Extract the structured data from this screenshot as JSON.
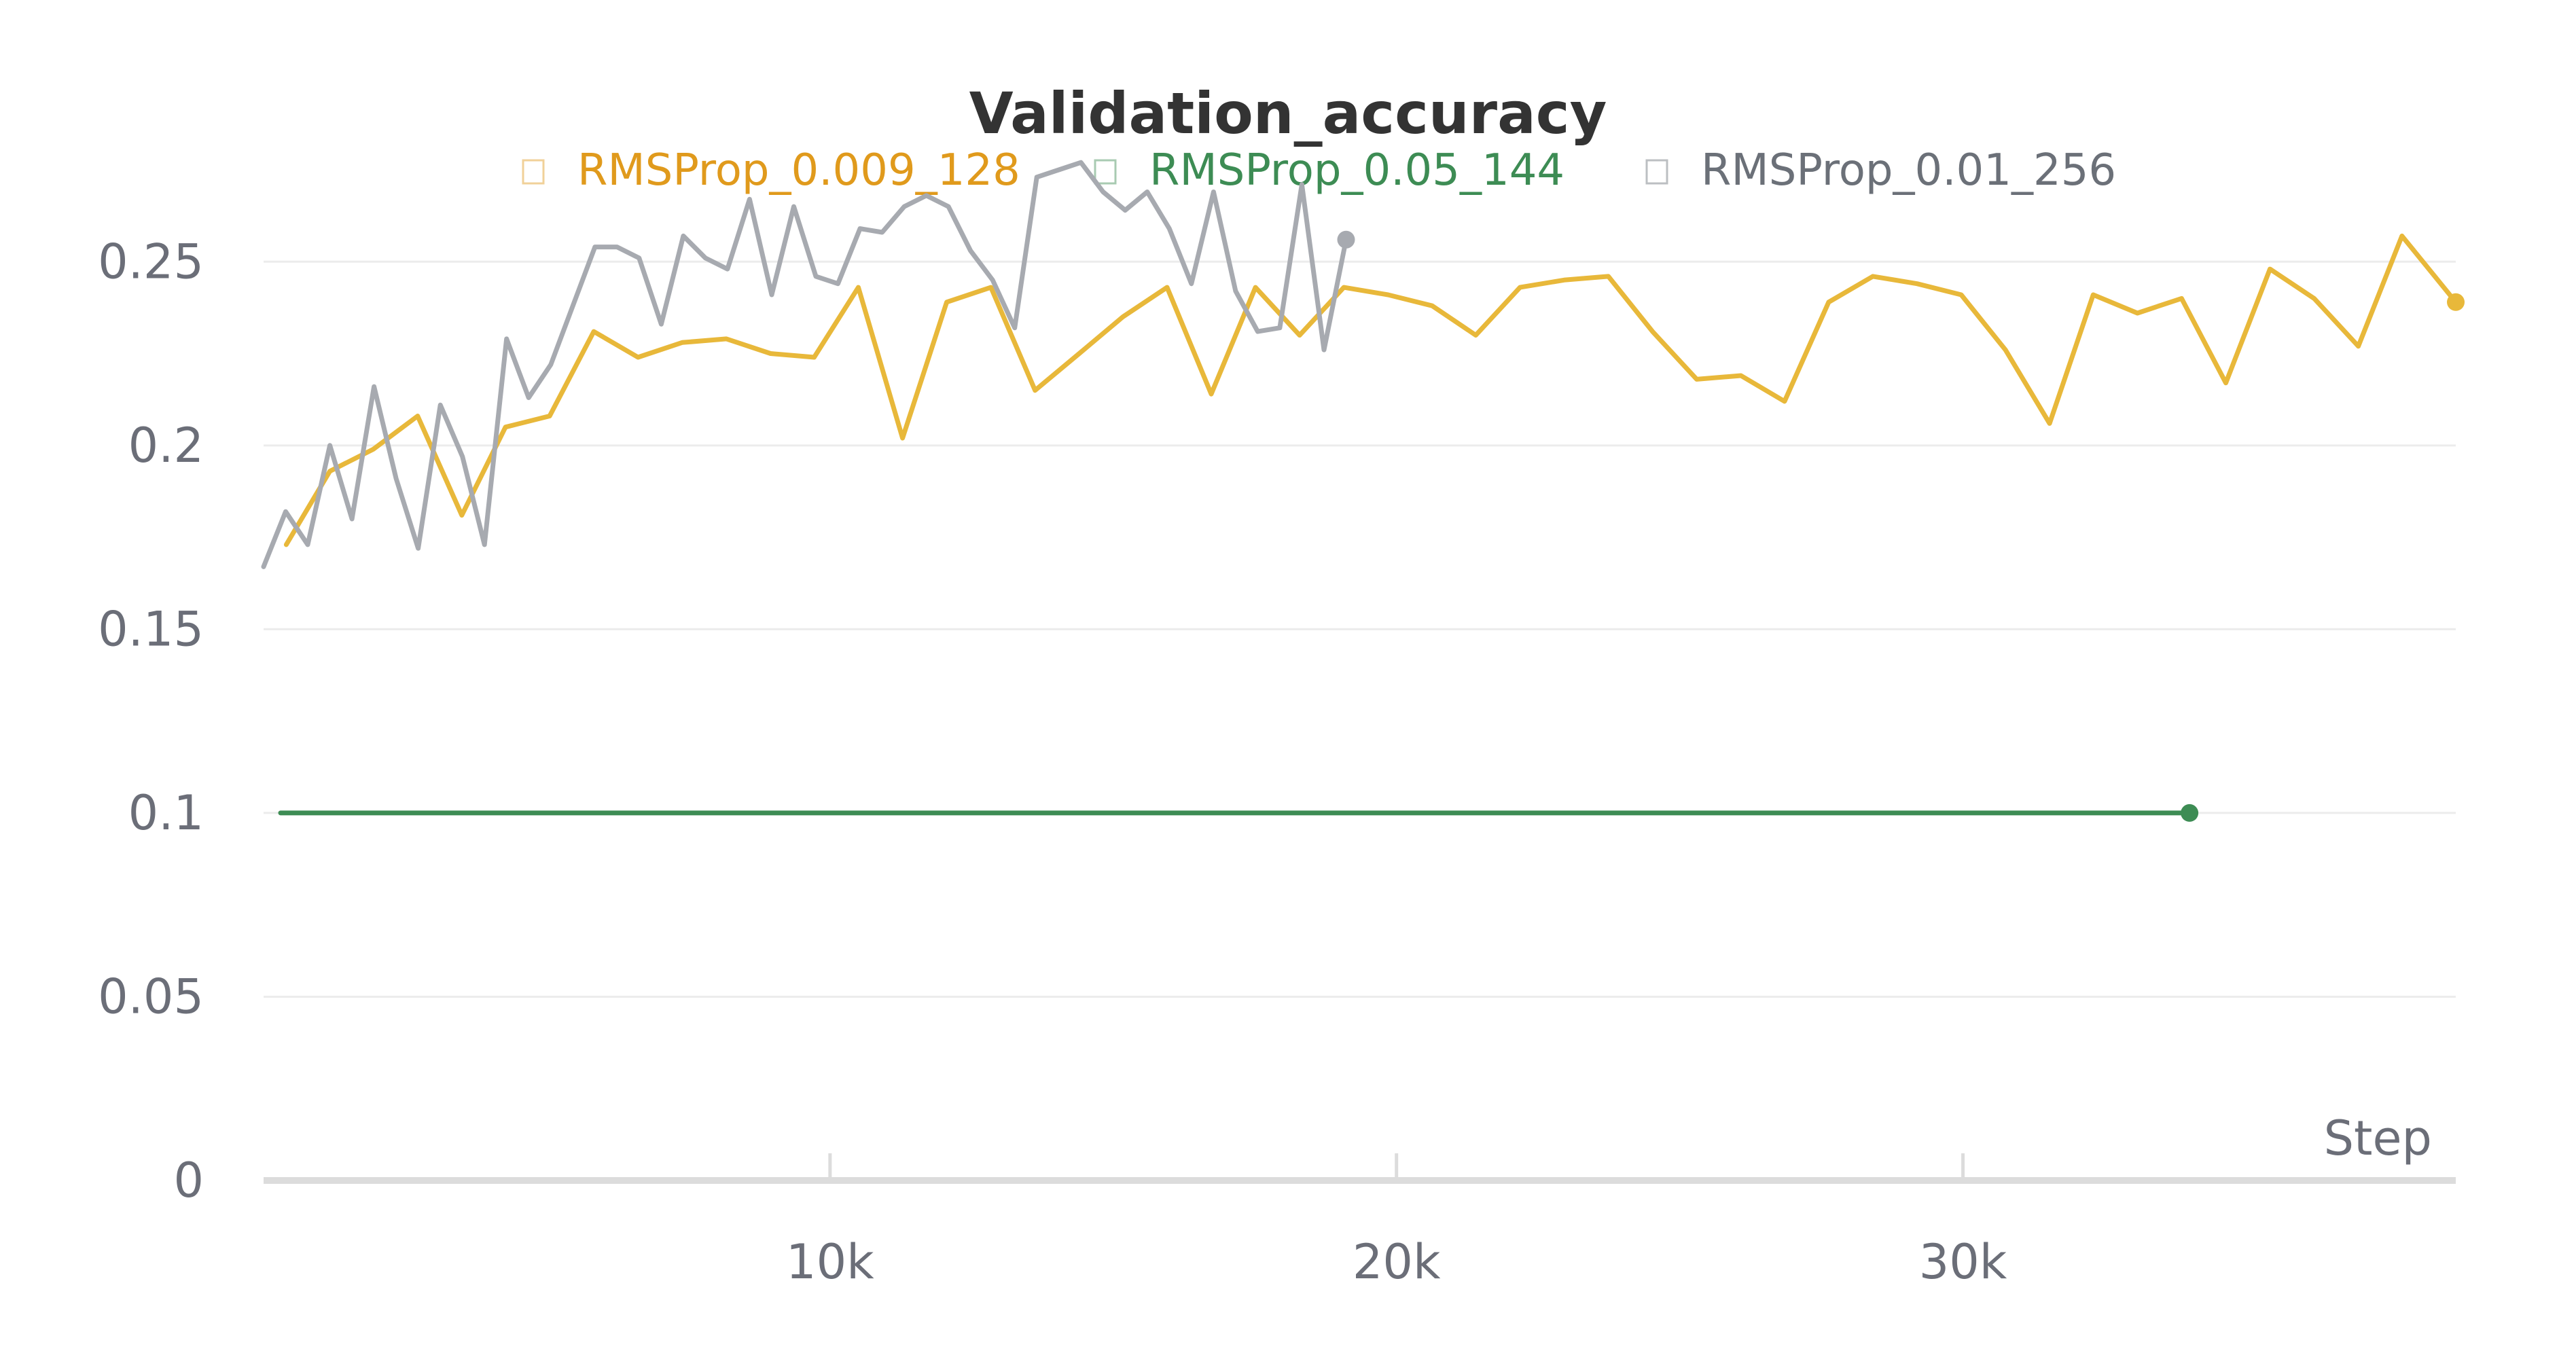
{
  "chart_data": {
    "type": "line",
    "title": "Validation_accuracy",
    "xlabel": "Step",
    "ylabel": "",
    "xlim": [
      0,
      38700
    ],
    "ylim": [
      0,
      0.275
    ],
    "x_ticks": [
      10000,
      20000,
      30000
    ],
    "x_tick_labels": [
      "10k",
      "20k",
      "30k"
    ],
    "y_ticks": [
      0,
      0.05,
      0.1,
      0.15,
      0.2,
      0.25
    ],
    "y_tick_labels": [
      "0",
      "0.05",
      "0.1",
      "0.15",
      "0.2",
      "0.25"
    ],
    "grid": "horizontal",
    "legend_position": "top",
    "series": [
      {
        "name": "RMSProp_0.009_128",
        "color": "#e8b83a",
        "legend_color": "#e09a1c",
        "x": [
          400,
          1170,
          1940,
          2720,
          3500,
          4270,
          5050,
          5830,
          6610,
          7390,
          8170,
          8950,
          9720,
          10500,
          11280,
          12060,
          12840,
          13620,
          14400,
          15170,
          15950,
          16730,
          17510,
          18290,
          19070,
          19850,
          20630,
          21400,
          22180,
          22960,
          23740,
          24520,
          25300,
          26080,
          26850,
          27630,
          28410,
          29190,
          29970,
          30750,
          31530,
          32300,
          33080,
          33860,
          34640,
          35420,
          36200,
          36980,
          37750,
          38700
        ],
        "y": [
          0.173,
          0.193,
          0.199,
          0.208,
          0.181,
          0.205,
          0.208,
          0.231,
          0.224,
          0.228,
          0.229,
          0.225,
          0.224,
          0.243,
          0.202,
          0.239,
          0.243,
          0.215,
          0.225,
          0.235,
          0.243,
          0.214,
          0.243,
          0.23,
          0.243,
          0.241,
          0.238,
          0.23,
          0.243,
          0.245,
          0.246,
          0.231,
          0.218,
          0.219,
          0.212,
          0.239,
          0.246,
          0.244,
          0.241,
          0.226,
          0.206,
          0.241,
          0.236,
          0.24,
          0.217,
          0.248,
          0.24,
          0.227,
          0.257,
          0.239
        ]
      },
      {
        "name": "RMSProp_0.05_144",
        "color": "#3d8c54",
        "legend_color": "#3d8c54",
        "x": [
          300,
          2300,
          5000,
          8000,
          10000,
          12000,
          15000,
          18000,
          20000,
          22000,
          25000,
          28000,
          31000,
          34000
        ],
        "y": [
          0.1,
          0.1,
          0.1,
          0.1,
          0.1,
          0.1,
          0.1,
          0.1,
          0.1,
          0.1,
          0.1,
          0.1,
          0.1,
          0.1
        ]
      },
      {
        "name": "RMSProp_0.01_256",
        "color": "#a7aab0",
        "legend_color": "#6b7078",
        "x": [
          0,
          390,
          780,
          1170,
          1560,
          1950,
          2340,
          2730,
          3120,
          3510,
          3900,
          4290,
          4680,
          5070,
          5460,
          5850,
          6240,
          6630,
          7020,
          7410,
          7800,
          8190,
          8580,
          8970,
          9360,
          9750,
          10140,
          10530,
          10920,
          11310,
          11700,
          12090,
          12480,
          12870,
          13260,
          13650,
          14040,
          14430,
          14820,
          15210,
          15600,
          15990,
          16380,
          16770,
          17160,
          17550,
          17940,
          18330,
          18720,
          19110
        ],
        "y": [
          0.167,
          0.182,
          0.173,
          0.2,
          0.18,
          0.216,
          0.191,
          0.172,
          0.211,
          0.197,
          0.173,
          0.229,
          0.213,
          0.222,
          0.238,
          0.254,
          0.254,
          0.251,
          0.233,
          0.257,
          0.251,
          0.248,
          0.267,
          0.241,
          0.265,
          0.246,
          0.244,
          0.259,
          0.258,
          0.265,
          0.268,
          0.265,
          0.253,
          0.245,
          0.232,
          0.273,
          0.275,
          0.277,
          0.269,
          0.264,
          0.269,
          0.259,
          0.244,
          0.269,
          0.242,
          0.231,
          0.232,
          0.271,
          0.226,
          0.256
        ]
      }
    ]
  }
}
